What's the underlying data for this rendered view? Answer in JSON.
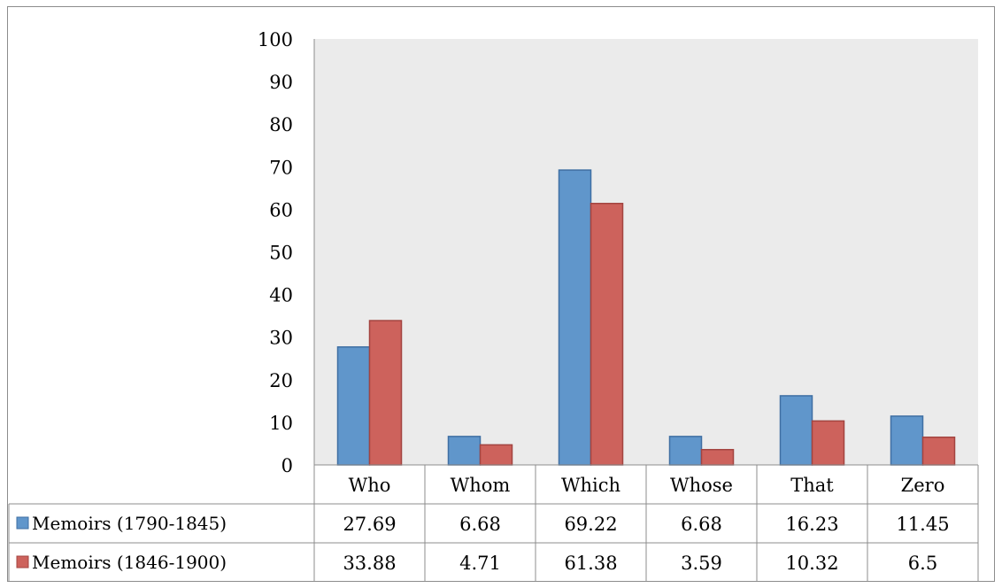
{
  "chart_data": {
    "type": "bar",
    "categories": [
      "Who",
      "Whom",
      "Which",
      "Whose",
      "That",
      "Zero"
    ],
    "series": [
      {
        "name": "Memoirs (1790-1845)",
        "values": [
          27.69,
          6.68,
          69.22,
          6.68,
          16.23,
          11.45
        ],
        "display": [
          "27.69",
          "6.68",
          "69.22",
          "6.68",
          "16.23",
          "11.45"
        ],
        "color": "#6096cb",
        "stroke": "#3f6fa3"
      },
      {
        "name": "Memoirs (1846-1900)",
        "values": [
          33.88,
          4.71,
          61.38,
          3.59,
          10.32,
          6.5
        ],
        "display": [
          "33.88",
          "4.71",
          "61.38",
          "3.59",
          "10.32",
          "6.5"
        ],
        "color": "#cd625c",
        "stroke": "#a34440"
      }
    ],
    "ylim": [
      0,
      100
    ],
    "yticks": [
      "0",
      "10",
      "20",
      "30",
      "40",
      "50",
      "60",
      "70",
      "80",
      "90",
      "100"
    ],
    "plot_background": "#ebebeb",
    "grid": false,
    "legend": "data-table",
    "title": "",
    "xlabel": "",
    "ylabel": ""
  }
}
